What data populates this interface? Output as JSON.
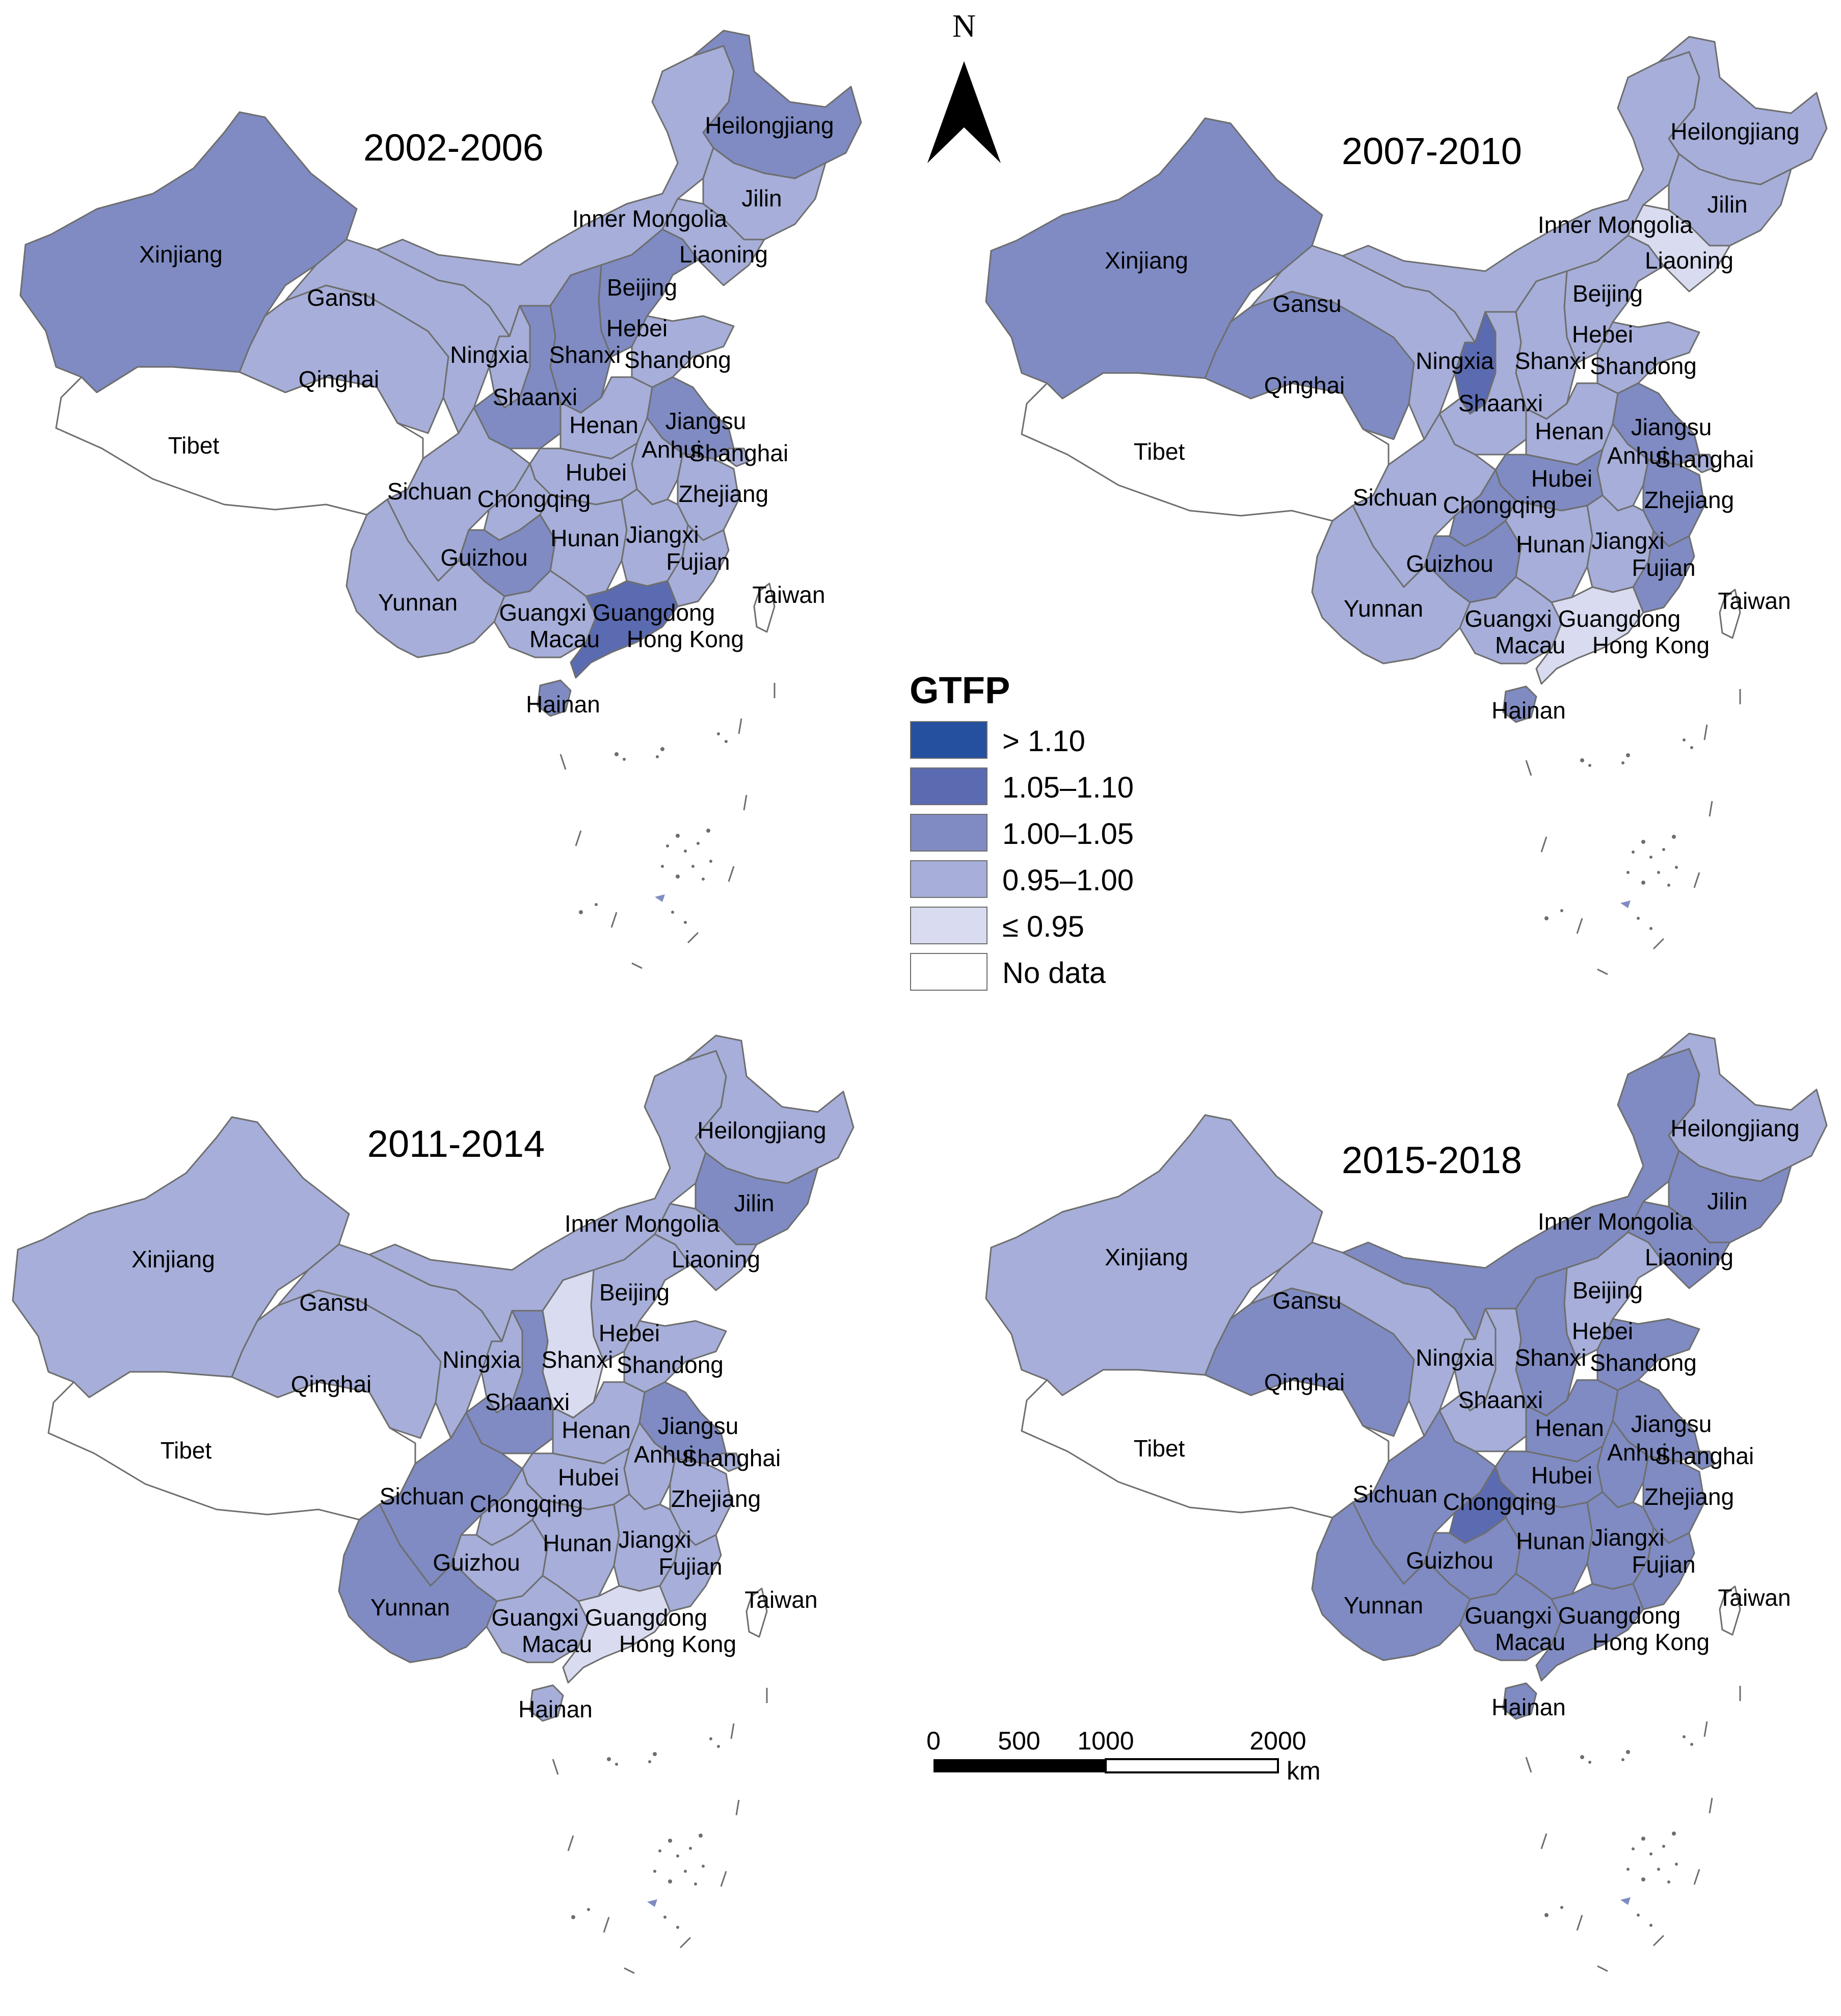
{
  "colors": {
    "gt110": "#2550a0",
    "c105_110": "#5b6bb1",
    "c100_105": "#7f8bc2",
    "c095_100": "#a6aed9",
    "le095": "#d9dcf0",
    "nodata": "#ffffff",
    "border": "#6e6e6e"
  },
  "north_arrow": {
    "label": "N"
  },
  "legend": {
    "title": "GTFP",
    "items": [
      {
        "label": "> 1.10",
        "cls": "gt110"
      },
      {
        "label": "1.05–1.10",
        "cls": "c105_110"
      },
      {
        "label": "1.00–1.05",
        "cls": "c100_105"
      },
      {
        "label": "0.95–1.00",
        "cls": "c095_100"
      },
      {
        "label": "≤ 0.95",
        "cls": "le095"
      },
      {
        "label": "No data",
        "cls": "nodata"
      }
    ]
  },
  "scale_bar": {
    "ticks": [
      "0",
      "500",
      "1000",
      "2000"
    ],
    "unit": "km"
  },
  "panels": [
    {
      "title": "2002-2006",
      "regions": {
        "Xinjiang": "c100_105",
        "Tibet": "nodata",
        "Qinghai": "c095_100",
        "Gansu": "c095_100",
        "Inner Mongolia": "c095_100",
        "Heilongjiang": "c100_105",
        "Jilin": "c095_100",
        "Liaoning": "c095_100",
        "Beijing": "c100_105",
        "Hebei": "c100_105",
        "Shanxi": "c100_105",
        "Shandong": "c095_100",
        "Ningxia": "c095_100",
        "Shaanxi": "c100_105",
        "Henan": "c095_100",
        "Jiangsu": "c100_105",
        "Anhui": "c095_100",
        "Shanghai": "c095_100",
        "Sichuan": "c095_100",
        "Chongqing": "c095_100",
        "Hubei": "c095_100",
        "Zhejiang": "c095_100",
        "Guizhou": "c100_105",
        "Hunan": "c095_100",
        "Jiangxi": "c095_100",
        "Fujian": "c095_100",
        "Yunnan": "c095_100",
        "Guangxi": "c095_100",
        "Guangdong": "c105_110",
        "Hainan": "c100_105",
        "Taiwan": "nodata"
      }
    },
    {
      "title": "2007-2010",
      "regions": {
        "Xinjiang": "c100_105",
        "Tibet": "nodata",
        "Qinghai": "c100_105",
        "Gansu": "c095_100",
        "Inner Mongolia": "c095_100",
        "Heilongjiang": "c095_100",
        "Jilin": "c095_100",
        "Liaoning": "le095",
        "Beijing": "c105_110",
        "Hebei": "c095_100",
        "Shanxi": "c095_100",
        "Shandong": "c095_100",
        "Ningxia": "c105_110",
        "Shaanxi": "c095_100",
        "Henan": "c095_100",
        "Jiangsu": "c100_105",
        "Anhui": "c095_100",
        "Shanghai": "c095_100",
        "Sichuan": "c095_100",
        "Chongqing": "c100_105",
        "Hubei": "c100_105",
        "Zhejiang": "c100_105",
        "Guizhou": "c100_105",
        "Hunan": "c095_100",
        "Jiangxi": "c095_100",
        "Fujian": "c100_105",
        "Yunnan": "c095_100",
        "Guangxi": "c095_100",
        "Guangdong": "le095",
        "Hainan": "c100_105",
        "Taiwan": "nodata"
      }
    },
    {
      "title": "2011-2014",
      "regions": {
        "Xinjiang": "c095_100",
        "Tibet": "nodata",
        "Qinghai": "c095_100",
        "Gansu": "c095_100",
        "Inner Mongolia": "c095_100",
        "Heilongjiang": "c095_100",
        "Jilin": "c100_105",
        "Liaoning": "c095_100",
        "Beijing": "c095_100",
        "Hebei": "c095_100",
        "Shanxi": "le095",
        "Shandong": "c095_100",
        "Ningxia": "c095_100",
        "Shaanxi": "c100_105",
        "Henan": "c095_100",
        "Jiangsu": "c100_105",
        "Anhui": "c095_100",
        "Shanghai": "c095_100",
        "Sichuan": "c100_105",
        "Chongqing": "c095_100",
        "Hubei": "c095_100",
        "Zhejiang": "c095_100",
        "Guizhou": "c095_100",
        "Hunan": "c095_100",
        "Jiangxi": "c095_100",
        "Fujian": "c095_100",
        "Yunnan": "c100_105",
        "Guangxi": "c095_100",
        "Guangdong": "le095",
        "Hainan": "c095_100",
        "Taiwan": "nodata"
      }
    },
    {
      "title": "2015-2018",
      "regions": {
        "Xinjiang": "c095_100",
        "Tibet": "nodata",
        "Qinghai": "c100_105",
        "Gansu": "c095_100",
        "Inner Mongolia": "c100_105",
        "Heilongjiang": "c095_100",
        "Jilin": "c100_105",
        "Liaoning": "c100_105",
        "Beijing": "c105_110",
        "Hebei": "c095_100",
        "Shanxi": "c100_105",
        "Shandong": "c100_105",
        "Ningxia": "c095_100",
        "Shaanxi": "c095_100",
        "Henan": "c100_105",
        "Jiangsu": "c100_105",
        "Anhui": "c100_105",
        "Shanghai": "c100_105",
        "Sichuan": "c100_105",
        "Chongqing": "c105_110",
        "Hubei": "c100_105",
        "Zhejiang": "c100_105",
        "Guizhou": "c100_105",
        "Hunan": "c100_105",
        "Jiangxi": "c100_105",
        "Fujian": "c100_105",
        "Yunnan": "c100_105",
        "Guangxi": "c100_105",
        "Guangdong": "c100_105",
        "Hainan": "c100_105",
        "Taiwan": "nodata"
      }
    }
  ],
  "place_labels": {
    "Xinjiang": "Xinjiang",
    "Tibet": "Tibet",
    "Qinghai": "Qinghai",
    "Gansu": "Gansu",
    "Inner Mongolia": "Inner Mongolia",
    "Heilongjiang": "Heilongjiang",
    "Jilin": "Jilin",
    "Liaoning": "Liaoning",
    "Beijing": "Beijing",
    "Hebei": "Hebei",
    "Shanxi": "Shanxi",
    "Shandong": "Shandong",
    "Ningxia": "Ningxia",
    "Shaanxi": "Shaanxi",
    "Henan": "Henan",
    "Jiangsu": "Jiangsu",
    "Anhui": "Anhui",
    "Shanghai": "Shanghai",
    "Sichuan": "Sichuan",
    "Chongqing": "Chongqing",
    "Hubei": "Hubei",
    "Zhejiang": "Zhejiang",
    "Guizhou": "Guizhou",
    "Hunan": "Hunan",
    "Jiangxi": "Jiangxi",
    "Fujian": "Fujian",
    "Yunnan": "Yunnan",
    "Guangxi": "Guangxi",
    "Guangdong": "Guangdong",
    "Macau": "Macau",
    "Hong Kong": "Hong Kong",
    "Hainan": "Hainan",
    "Taiwan": "Taiwan"
  }
}
